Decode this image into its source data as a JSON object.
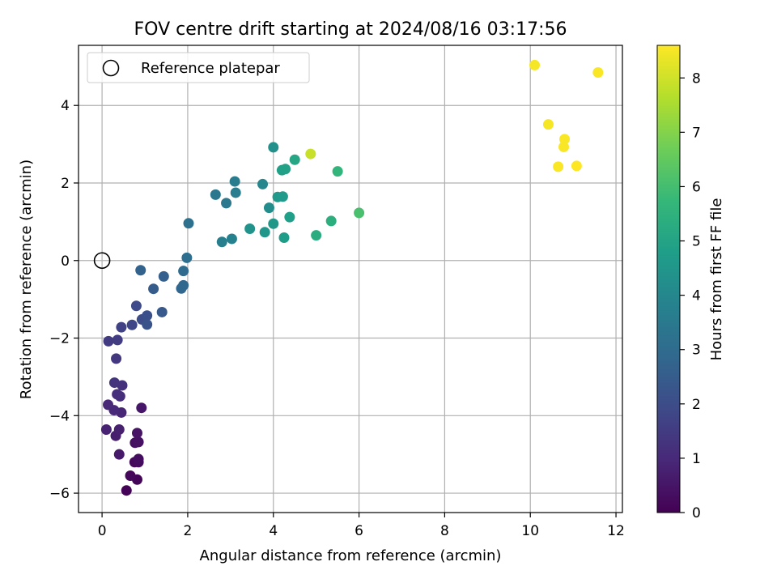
{
  "chart_data": {
    "type": "scatter",
    "title": "FOV centre drift starting at 2024/08/16 03:17:56",
    "xlabel": "Angular distance from reference (arcmin)",
    "ylabel": "Rotation from reference (arcmin)",
    "xlim": [
      -0.55,
      12.15
    ],
    "ylim": [
      -6.5,
      5.55
    ],
    "xticks": [
      0,
      2,
      4,
      6,
      8,
      10,
      12
    ],
    "xtick_labels": [
      "0",
      "2",
      "4",
      "6",
      "8",
      "10",
      "12"
    ],
    "yticks": [
      -6,
      -4,
      -2,
      0,
      2,
      4
    ],
    "ytick_labels": [
      "−6",
      "−4",
      "−2",
      "0",
      "2",
      "4"
    ],
    "grid": true,
    "legend": {
      "position": "top-left",
      "entries": [
        "Reference platepar"
      ]
    },
    "reference_point": {
      "x": 0,
      "y": 0
    },
    "colorbar": {
      "label": "Hours from first FF file",
      "range": [
        0,
        8.6
      ],
      "ticks": [
        0,
        1,
        2,
        3,
        4,
        5,
        6,
        7,
        8
      ],
      "tick_labels": [
        "0",
        "1",
        "2",
        "3",
        "4",
        "5",
        "6",
        "7",
        "8"
      ],
      "colormap": "viridis"
    },
    "points": [
      {
        "x": 0.57,
        "y": -5.93,
        "h": 0.05
      },
      {
        "x": 0.82,
        "y": -5.65,
        "h": 0.1
      },
      {
        "x": 0.66,
        "y": -5.55,
        "h": 0.15
      },
      {
        "x": 0.76,
        "y": -5.2,
        "h": 0.2
      },
      {
        "x": 0.85,
        "y": -5.2,
        "h": 0.25
      },
      {
        "x": 0.85,
        "y": -5.12,
        "h": 0.3
      },
      {
        "x": 0.77,
        "y": -4.7,
        "h": 0.35
      },
      {
        "x": 0.85,
        "y": -4.68,
        "h": 0.4
      },
      {
        "x": 0.82,
        "y": -4.45,
        "h": 0.45
      },
      {
        "x": 0.92,
        "y": -3.8,
        "h": 0.55
      },
      {
        "x": 0.4,
        "y": -5.0,
        "h": 0.6
      },
      {
        "x": 0.32,
        "y": -4.52,
        "h": 0.7
      },
      {
        "x": 0.4,
        "y": -4.36,
        "h": 0.75
      },
      {
        "x": 0.1,
        "y": -4.36,
        "h": 0.8
      },
      {
        "x": 0.45,
        "y": -3.92,
        "h": 0.9
      },
      {
        "x": 0.28,
        "y": -3.86,
        "h": 0.95
      },
      {
        "x": 0.14,
        "y": -3.72,
        "h": 1.0
      },
      {
        "x": 0.42,
        "y": -3.5,
        "h": 1.1
      },
      {
        "x": 0.35,
        "y": -3.45,
        "h": 1.15
      },
      {
        "x": 0.47,
        "y": -3.22,
        "h": 1.2
      },
      {
        "x": 0.29,
        "y": -3.15,
        "h": 1.3
      },
      {
        "x": 0.33,
        "y": -2.53,
        "h": 1.4
      },
      {
        "x": 0.15,
        "y": -2.08,
        "h": 1.5
      },
      {
        "x": 0.36,
        "y": -2.05,
        "h": 1.55
      },
      {
        "x": 0.45,
        "y": -1.72,
        "h": 1.7
      },
      {
        "x": 0.7,
        "y": -1.66,
        "h": 1.8
      },
      {
        "x": 0.8,
        "y": -1.17,
        "h": 1.9
      },
      {
        "x": 0.93,
        "y": -1.52,
        "h": 2.0
      },
      {
        "x": 1.05,
        "y": -1.42,
        "h": 2.1
      },
      {
        "x": 1.05,
        "y": -1.65,
        "h": 2.2
      },
      {
        "x": 1.4,
        "y": -1.33,
        "h": 2.4
      },
      {
        "x": 1.2,
        "y": -0.73,
        "h": 2.5
      },
      {
        "x": 1.44,
        "y": -0.41,
        "h": 2.6
      },
      {
        "x": 0.9,
        "y": -0.25,
        "h": 2.7
      },
      {
        "x": 1.85,
        "y": -0.72,
        "h": 2.8
      },
      {
        "x": 1.9,
        "y": -0.64,
        "h": 2.9
      },
      {
        "x": 1.9,
        "y": -0.27,
        "h": 3.0
      },
      {
        "x": 1.98,
        "y": 0.07,
        "h": 3.1
      },
      {
        "x": 2.02,
        "y": 0.96,
        "h": 3.2
      },
      {
        "x": 2.65,
        "y": 1.7,
        "h": 3.4
      },
      {
        "x": 2.9,
        "y": 1.48,
        "h": 3.5
      },
      {
        "x": 3.1,
        "y": 2.04,
        "h": 3.6
      },
      {
        "x": 3.12,
        "y": 1.75,
        "h": 3.65
      },
      {
        "x": 2.8,
        "y": 0.48,
        "h": 3.7
      },
      {
        "x": 3.03,
        "y": 0.56,
        "h": 3.8
      },
      {
        "x": 3.75,
        "y": 1.97,
        "h": 4.0
      },
      {
        "x": 3.9,
        "y": 1.36,
        "h": 4.2
      },
      {
        "x": 4.0,
        "y": 2.92,
        "h": 4.3
      },
      {
        "x": 3.45,
        "y": 0.82,
        "h": 4.4
      },
      {
        "x": 3.8,
        "y": 0.73,
        "h": 4.5
      },
      {
        "x": 4.0,
        "y": 0.95,
        "h": 4.55
      },
      {
        "x": 4.1,
        "y": 1.64,
        "h": 4.6
      },
      {
        "x": 4.22,
        "y": 1.65,
        "h": 4.65
      },
      {
        "x": 4.25,
        "y": 0.59,
        "h": 4.75
      },
      {
        "x": 4.38,
        "y": 1.12,
        "h": 4.8
      },
      {
        "x": 4.2,
        "y": 2.33,
        "h": 4.85
      },
      {
        "x": 4.28,
        "y": 2.36,
        "h": 4.9
      },
      {
        "x": 4.5,
        "y": 2.6,
        "h": 5.1
      },
      {
        "x": 5.0,
        "y": 0.65,
        "h": 5.3
      },
      {
        "x": 5.35,
        "y": 1.02,
        "h": 5.4
      },
      {
        "x": 5.5,
        "y": 2.3,
        "h": 5.6
      },
      {
        "x": 6.0,
        "y": 1.23,
        "h": 6.1
      },
      {
        "x": 4.87,
        "y": 2.75,
        "h": 7.9
      },
      {
        "x": 10.1,
        "y": 5.04,
        "h": 8.5
      },
      {
        "x": 11.58,
        "y": 4.85,
        "h": 8.55
      },
      {
        "x": 10.42,
        "y": 3.51,
        "h": 8.5
      },
      {
        "x": 10.8,
        "y": 3.13,
        "h": 8.55
      },
      {
        "x": 10.78,
        "y": 2.93,
        "h": 8.55
      },
      {
        "x": 10.65,
        "y": 2.42,
        "h": 8.55
      },
      {
        "x": 11.08,
        "y": 2.44,
        "h": 8.6
      }
    ]
  }
}
